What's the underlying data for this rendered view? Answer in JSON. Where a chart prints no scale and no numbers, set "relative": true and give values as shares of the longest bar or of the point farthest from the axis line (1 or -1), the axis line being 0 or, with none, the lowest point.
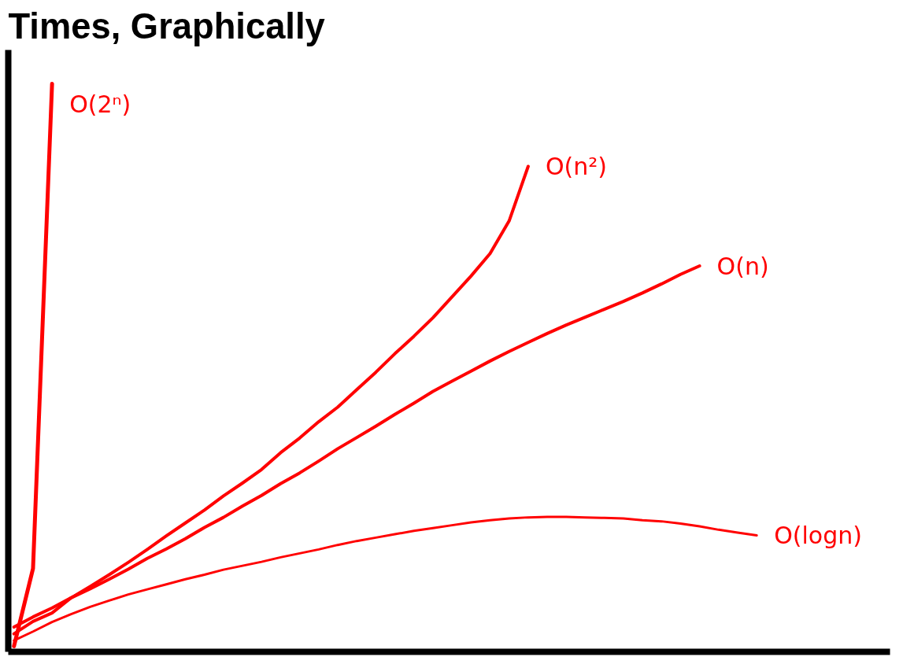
{
  "chart_data": {
    "type": "line",
    "title": "Times, Graphically",
    "relative": true,
    "grid": false,
    "legend": false,
    "categories": [
      null,
      null,
      null,
      null,
      null,
      null,
      null,
      null,
      null,
      null,
      null,
      null,
      null,
      null,
      null,
      null,
      null,
      null,
      null,
      null,
      null,
      null,
      null,
      null,
      null,
      null,
      null,
      null,
      null,
      null,
      null,
      null,
      null,
      null,
      null,
      null,
      null,
      null,
      null,
      null
    ],
    "series": [
      {
        "name": "O(2ⁿ)",
        "color": "#ff0000",
        "values": [
          0,
          0.138,
          1.0,
          null,
          null,
          null,
          null,
          null,
          null,
          null,
          null,
          null,
          null,
          null,
          null,
          null,
          null,
          null,
          null,
          null,
          null,
          null,
          null,
          null,
          null,
          null,
          null,
          null,
          null,
          null,
          null,
          null,
          null,
          null,
          null,
          null,
          null,
          null,
          null,
          null
        ]
      },
      {
        "name": "O(n²)",
        "color": "#ff0000",
        "values": [
          0.022,
          0.044,
          0.059,
          0.086,
          0.106,
          0.127,
          0.149,
          0.172,
          0.196,
          0.219,
          0.242,
          0.267,
          0.29,
          0.314,
          0.344,
          0.37,
          0.399,
          0.425,
          0.456,
          0.487,
          0.52,
          0.551,
          0.584,
          0.621,
          0.658,
          0.698,
          0.756,
          0.853,
          null,
          null,
          null,
          null,
          null,
          null,
          null,
          null,
          null,
          null,
          null,
          null
        ]
      },
      {
        "name": "O(n)",
        "color": "#ff0000",
        "values": [
          0.034,
          0.052,
          0.068,
          0.086,
          0.102,
          0.119,
          0.137,
          0.156,
          0.173,
          0.191,
          0.211,
          0.229,
          0.249,
          0.268,
          0.289,
          0.308,
          0.329,
          0.351,
          0.371,
          0.391,
          0.412,
          0.432,
          0.453,
          0.471,
          0.489,
          0.507,
          0.524,
          0.54,
          0.556,
          0.571,
          0.585,
          0.599,
          0.613,
          0.628,
          0.644,
          0.661,
          0.676,
          null,
          null,
          null
        ]
      },
      {
        "name": "O(logn)",
        "color": "#ff0000",
        "values": [
          0.01,
          0.026,
          0.043,
          0.057,
          0.07,
          0.081,
          0.092,
          0.101,
          0.11,
          0.119,
          0.127,
          0.136,
          0.143,
          0.15,
          0.158,
          0.165,
          0.172,
          0.18,
          0.187,
          0.193,
          0.199,
          0.205,
          0.21,
          0.215,
          0.22,
          0.224,
          0.227,
          0.229,
          0.23,
          0.23,
          0.229,
          0.228,
          0.227,
          0.224,
          0.222,
          0.218,
          0.213,
          0.207,
          0.202,
          0.197
        ]
      }
    ]
  }
}
